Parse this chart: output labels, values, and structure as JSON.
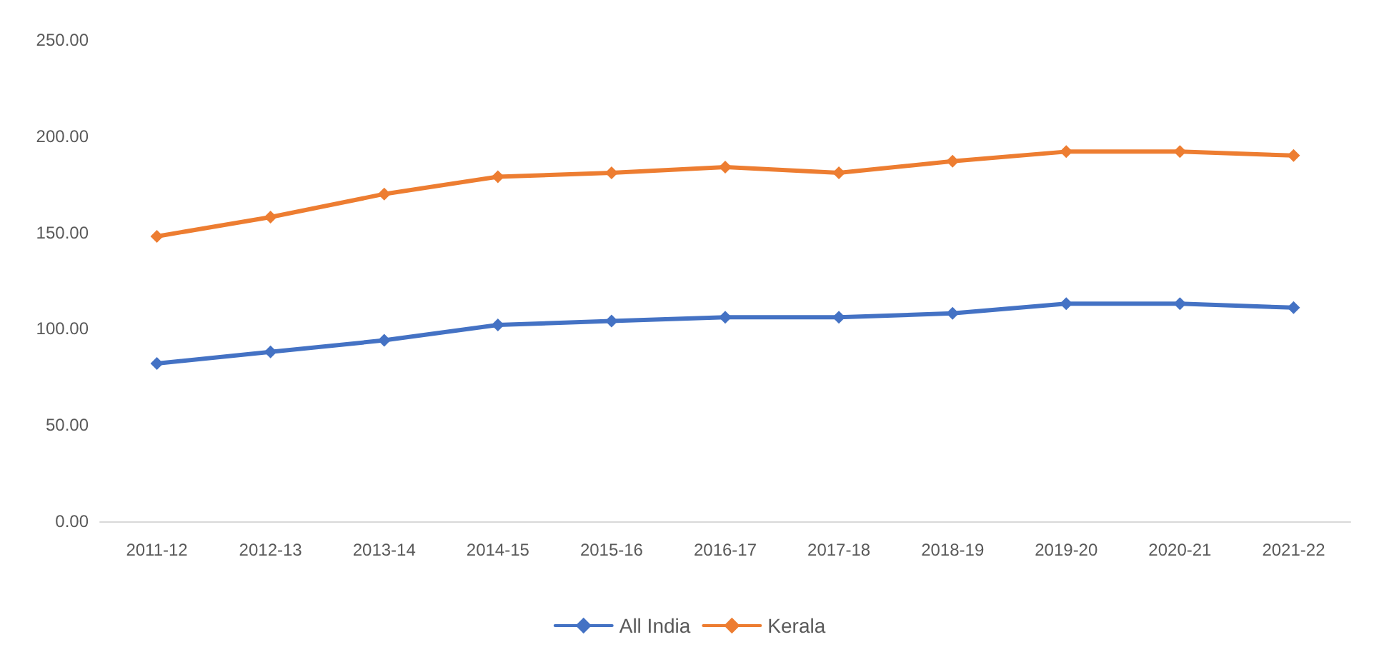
{
  "chart_data": {
    "type": "line",
    "categories": [
      "2011-12",
      "2012-13",
      "2013-14",
      "2014-15",
      "2015-16",
      "2016-17",
      "2017-18",
      "2018-19",
      "2019-20",
      "2020-21",
      "2021-22"
    ],
    "series": [
      {
        "name": "All India",
        "color": "#4472c4",
        "values": [
          82,
          88,
          94,
          102,
          104,
          106,
          106,
          108,
          113,
          113,
          111
        ]
      },
      {
        "name": "Kerala",
        "color": "#ed7d31",
        "values": [
          148,
          158,
          170,
          179,
          181,
          184,
          181,
          187,
          192,
          192,
          190
        ]
      }
    ],
    "ylim": [
      0,
      250
    ],
    "yticks": [
      {
        "value": 0,
        "label": "0.00"
      },
      {
        "value": 50,
        "label": "50.00"
      },
      {
        "value": 100,
        "label": "100.00"
      },
      {
        "value": 150,
        "label": "150.00"
      },
      {
        "value": 200,
        "label": "200.00"
      },
      {
        "value": 250,
        "label": "250.00"
      }
    ],
    "grid": false,
    "legend": "bottom",
    "marker": "diamond",
    "line_style": "solid"
  }
}
